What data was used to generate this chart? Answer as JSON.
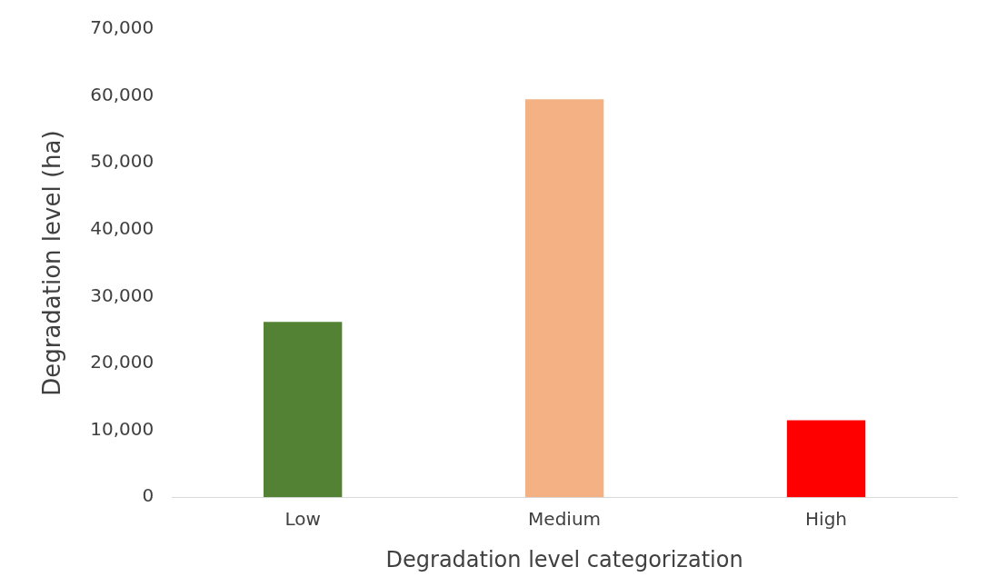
{
  "chart_data": {
    "type": "bar",
    "xlabel": "Degradation level categorization",
    "ylabel": "Degradation level (ha)",
    "categories": [
      "Low",
      "Medium",
      "High"
    ],
    "values": [
      26200,
      59500,
      11500
    ],
    "colors": [
      "#548235",
      "#f4b183",
      "#ff0000"
    ],
    "ylim": [
      0,
      70000
    ],
    "yticks": [
      0,
      {
        "value": 10000,
        "label": "10,000"
      },
      {
        "value": 20000,
        "label": "20,000"
      },
      {
        "value": 30000,
        "label": "30,000"
      },
      {
        "value": 40000,
        "label": "40,000"
      },
      {
        "value": 50000,
        "label": "50,000"
      },
      {
        "value": 60000,
        "label": "60,000"
      },
      {
        "value": 70000,
        "label": "70,000"
      }
    ],
    "grid": false,
    "legend": false
  }
}
